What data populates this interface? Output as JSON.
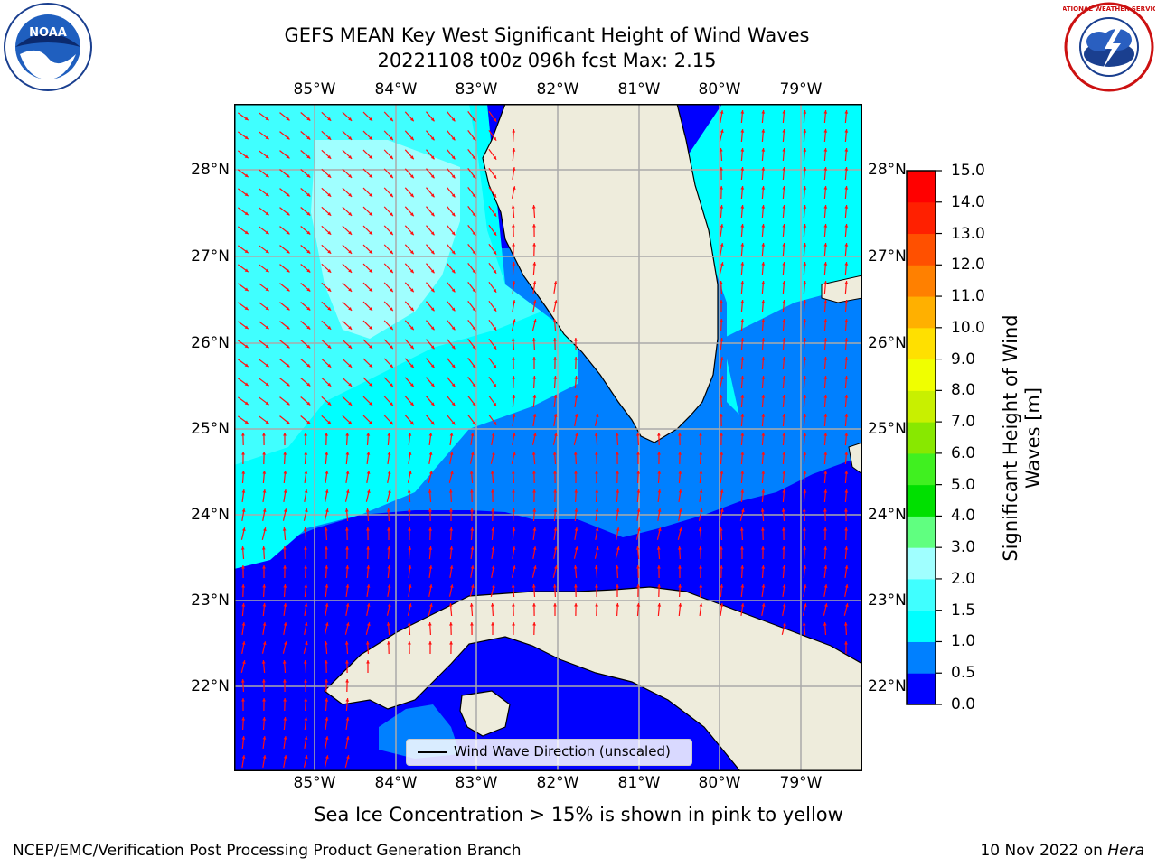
{
  "title": {
    "line1": "GEFS MEAN Key West Significant Height of Wind Waves",
    "line2": "20221108 t00z 096h fcst   Max: 2.15"
  },
  "logos": {
    "left_icon": "noaa-logo",
    "right_icon": "nws-logo",
    "left_text": "NOAA",
    "right_text": "NATIONAL WEATHER SERVICE"
  },
  "map": {
    "lon_labels": [
      "85°W",
      "84°W",
      "83°W",
      "82°W",
      "81°W",
      "80°W",
      "79°W"
    ],
    "lat_labels": [
      "28°N",
      "27°N",
      "26°N",
      "25°N",
      "24°N",
      "23°N",
      "22°N"
    ],
    "colors": {
      "land": "#eeecdc",
      "arrow": "#ff1010",
      "grid": "#aaaaaa"
    },
    "legend_text": "Wind Wave Direction (unscaled)"
  },
  "colorbar": {
    "ticks": [
      "15.0",
      "14.0",
      "13.0",
      "12.0",
      "11.0",
      "10.0",
      "9.0",
      "8.0",
      "7.0",
      "6.0",
      "5.0",
      "4.0",
      "3.0",
      "2.0",
      "1.5",
      "1.0",
      "0.5",
      "0.0"
    ],
    "colors": [
      "#0000ff",
      "#0080ff",
      "#00ffff",
      "#40ffff",
      "#a0ffff",
      "#60ff80",
      "#00e000",
      "#40f020",
      "#88e800",
      "#c8f000",
      "#f0ff00",
      "#ffe000",
      "#ffb000",
      "#ff8000",
      "#ff5000",
      "#ff2000",
      "#ff0000"
    ],
    "label_line1": "Significant Height of Wind",
    "label_line2": "Waves [m]"
  },
  "caption": "Sea Ice Concentration > 15% is shown in pink to yellow",
  "footer": {
    "left": "NCEP/EMC/Verification Post Processing Product Generation Branch",
    "right_date": "10 Nov 2022 on ",
    "right_host": "Hera"
  }
}
